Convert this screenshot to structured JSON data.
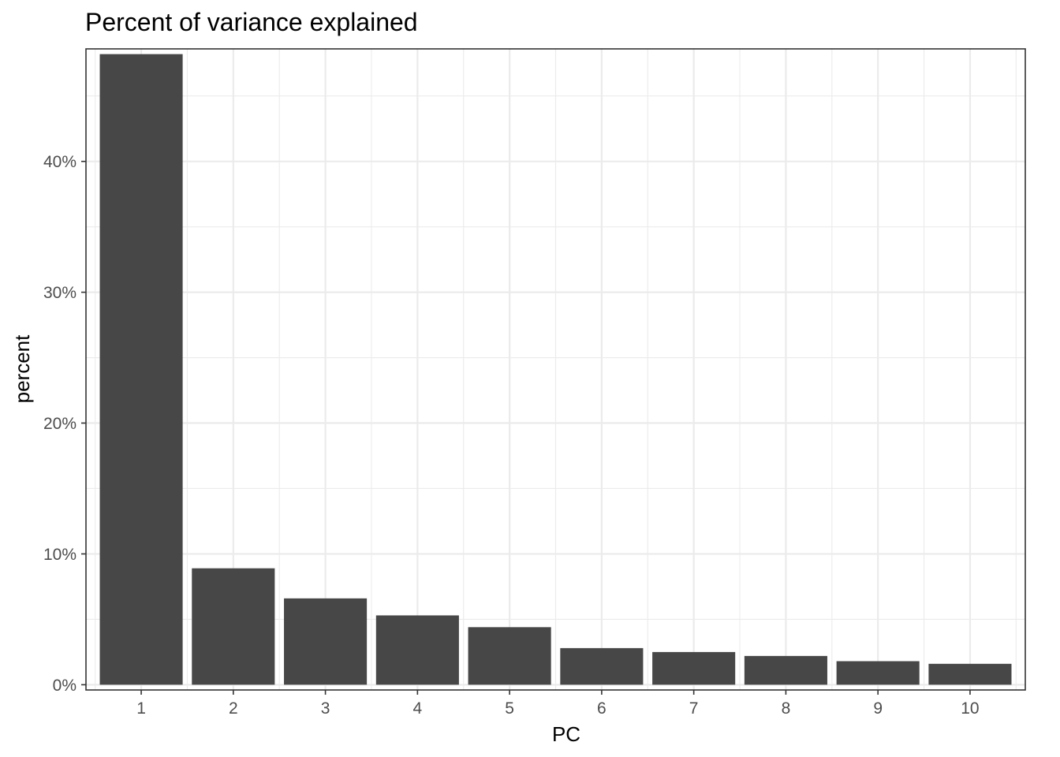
{
  "chart_data": {
    "type": "bar",
    "title": "Percent of variance explained",
    "xlabel": "PC",
    "ylabel": "percent",
    "categories": [
      "1",
      "2",
      "3",
      "4",
      "5",
      "6",
      "7",
      "8",
      "9",
      "10"
    ],
    "values": [
      48.2,
      8.9,
      6.6,
      5.3,
      4.4,
      2.8,
      2.5,
      2.2,
      1.8,
      1.6
    ],
    "ylim": [
      -0.4,
      48.6
    ],
    "y_ticks": [
      0,
      10,
      20,
      30,
      40
    ],
    "y_tick_labels": [
      "0%",
      "10%",
      "20%",
      "30%",
      "40%"
    ],
    "grid": true,
    "bar_color": "#474747",
    "grid_color": "#ebebeb",
    "panel_border_color": "#333333"
  }
}
